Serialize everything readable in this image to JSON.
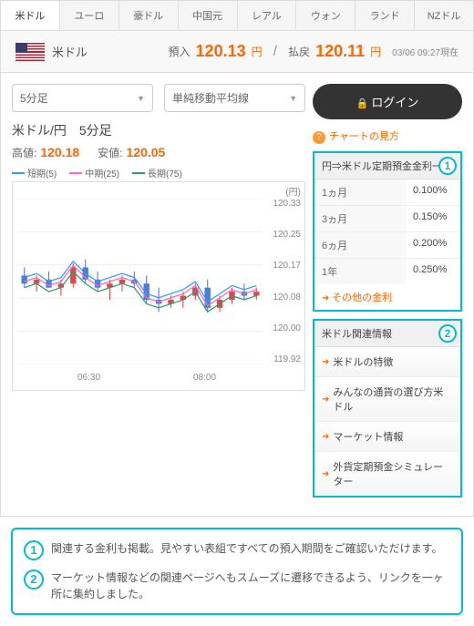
{
  "tabs": [
    "米ドル",
    "ユーロ",
    "豪ドル",
    "中国元",
    "レアル",
    "ウォン",
    "ランド",
    "NZドル"
  ],
  "activeTab": 0,
  "header": {
    "currency": "米ドル",
    "depositLabel": "預入",
    "depositValue": "120.13",
    "withdrawLabel": "払戻",
    "withdrawValue": "120.11",
    "unit": "円",
    "timestamp": "03/06 09:27現在"
  },
  "controls": {
    "timeframe": "5分足",
    "indicator": "単純移動平均線"
  },
  "chart": {
    "title": "米ドル/円　5分足",
    "highLabel": "高値:",
    "highValue": "120.18",
    "lowLabel": "安値:",
    "lowValue": "120.05",
    "legend": [
      {
        "label": "短期(5)",
        "color": "#3399ff"
      },
      {
        "label": "中期(25)",
        "color": "#ff66cc"
      },
      {
        "label": "長期(75)",
        "color": "#339966"
      }
    ],
    "yUnit": "(円)",
    "yTicks": [
      "120.33",
      "120.25",
      "120.17",
      "120.08",
      "120.00",
      "119.92"
    ],
    "xTicks": [
      "06:30",
      "08:00"
    ],
    "yMin": 119.92,
    "yMax": 120.33,
    "candles": [
      {
        "o": 120.14,
        "h": 120.16,
        "l": 120.11,
        "c": 120.12
      },
      {
        "o": 120.12,
        "h": 120.14,
        "l": 120.1,
        "c": 120.13
      },
      {
        "o": 120.13,
        "h": 120.15,
        "l": 120.11,
        "c": 120.11
      },
      {
        "o": 120.11,
        "h": 120.13,
        "l": 120.09,
        "c": 120.12
      },
      {
        "o": 120.12,
        "h": 120.17,
        "l": 120.11,
        "c": 120.16
      },
      {
        "o": 120.16,
        "h": 120.18,
        "l": 120.12,
        "c": 120.13
      },
      {
        "o": 120.13,
        "h": 120.15,
        "l": 120.1,
        "c": 120.11
      },
      {
        "o": 120.11,
        "h": 120.13,
        "l": 120.08,
        "c": 120.12
      },
      {
        "o": 120.12,
        "h": 120.14,
        "l": 120.1,
        "c": 120.13
      },
      {
        "o": 120.13,
        "h": 120.15,
        "l": 120.11,
        "c": 120.12
      },
      {
        "o": 120.12,
        "h": 120.14,
        "l": 120.07,
        "c": 120.08
      },
      {
        "o": 120.08,
        "h": 120.11,
        "l": 120.05,
        "c": 120.07
      },
      {
        "o": 120.07,
        "h": 120.09,
        "l": 120.06,
        "c": 120.08
      },
      {
        "o": 120.08,
        "h": 120.1,
        "l": 120.06,
        "c": 120.09
      },
      {
        "o": 120.09,
        "h": 120.12,
        "l": 120.08,
        "c": 120.11
      },
      {
        "o": 120.11,
        "h": 120.13,
        "l": 120.05,
        "c": 120.06
      },
      {
        "o": 120.06,
        "h": 120.09,
        "l": 120.05,
        "c": 120.08
      },
      {
        "o": 120.08,
        "h": 120.11,
        "l": 120.07,
        "c": 120.1
      },
      {
        "o": 120.1,
        "h": 120.12,
        "l": 120.08,
        "c": 120.09
      },
      {
        "o": 120.09,
        "h": 120.11,
        "l": 120.08,
        "c": 120.1
      }
    ],
    "ma5Color": "#3399ff",
    "ma25Color": "#ff66cc",
    "ma75Color": "#339966",
    "candleUpColor": "#d94c4c",
    "candleDownColor": "#4c7dd9",
    "gridColor": "#eeeeee"
  },
  "loginLabel": "ログイン",
  "helpLabel": "チャートの見方",
  "ratesPanel": {
    "badge": "1",
    "title": "円⇒米ドル定期預金金利一覧",
    "rows": [
      {
        "period": "1ヵ月",
        "rate": "0.100%"
      },
      {
        "period": "3ヵ月",
        "rate": "0.150%"
      },
      {
        "period": "6ヵ月",
        "rate": "0.200%"
      },
      {
        "period": "1年",
        "rate": "0.250%"
      }
    ],
    "moreLabel": "その他の金利"
  },
  "linksPanel": {
    "badge": "2",
    "title": "米ドル関連情報",
    "items": [
      "米ドルの特徴",
      "みんなの通貨の選び方米ドル",
      "マーケット情報",
      "外貨定期預金シミュレーター"
    ]
  },
  "footer": [
    {
      "badge": "1",
      "text": "関連する金利も掲載。見やすい表組ですべての預入期間をご確認いただけます。"
    },
    {
      "badge": "2",
      "text": "マーケット情報などの関連ページへもスムーズに遷移できるよう、リンクを一ヶ所に集約しました。"
    }
  ]
}
